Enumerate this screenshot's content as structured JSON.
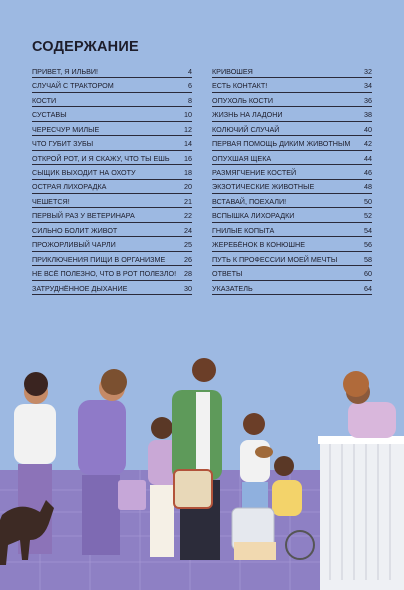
{
  "header": {
    "title": "СОДЕРЖАНИЕ"
  },
  "toc": {
    "left": [
      {
        "title": "ПРИВЕТ, Я ИЛЬВИ!",
        "page": "4"
      },
      {
        "title": "СЛУЧАЙ С ТРАКТОРОМ",
        "page": "6"
      },
      {
        "title": "КОСТИ",
        "page": "8"
      },
      {
        "title": "СУСТАВЫ",
        "page": "10"
      },
      {
        "title": "ЧЕРЕСЧУР МИЛЫЕ",
        "page": "12"
      },
      {
        "title": "ЧТО ГУБИТ ЗУБЫ",
        "page": "14"
      },
      {
        "title": "ОТКРОЙ РОТ, И Я СКАЖУ, ЧТО ТЫ ЕШЬ",
        "page": "16"
      },
      {
        "title": "СЫЩИК ВЫХОДИТ НА ОХОТУ",
        "page": "18"
      },
      {
        "title": "ОСТРАЯ ЛИХОРАДКА",
        "page": "20"
      },
      {
        "title": "ЧЕШЕТСЯ!",
        "page": "21"
      },
      {
        "title": "ПЕРВЫЙ РАЗ У ВЕТЕРИНАРА",
        "page": "22"
      },
      {
        "title": "СИЛЬНО БОЛИТ ЖИВОТ",
        "page": "24"
      },
      {
        "title": "ПРОЖОРЛИВЫЙ ЧАРЛИ",
        "page": "25"
      },
      {
        "title": "ПРИКЛЮЧЕНИЯ ПИЩИ В ОРГАНИЗМЕ",
        "page": "26"
      },
      {
        "title": "НЕ ВСЁ ПОЛЕЗНО, ЧТО В РОТ ПОЛЕЗЛО!",
        "page": "28"
      },
      {
        "title": "ЗАТРУДНЁННОЕ ДЫХАНИЕ",
        "page": "30"
      }
    ],
    "right": [
      {
        "title": "КРИВОШЕЯ",
        "page": "32"
      },
      {
        "title": "ЕСТЬ КОНТАКТ!",
        "page": "34"
      },
      {
        "title": "ОПУХОЛЬ КОСТИ",
        "page": "36"
      },
      {
        "title": "ЖИЗНЬ НА ЛАДОНИ",
        "page": "38"
      },
      {
        "title": "КОЛЮЧИЙ СЛУЧАЙ",
        "page": "40"
      },
      {
        "title": "ПЕРВАЯ ПОМОЩЬ ДИКИМ ЖИВОТНЫМ",
        "page": "42"
      },
      {
        "title": "ОПУХШАЯ ЩЕКА",
        "page": "44"
      },
      {
        "title": "РАЗМЯГЧЕНИЕ КОСТЕЙ",
        "page": "46"
      },
      {
        "title": "ЭКЗОТИЧЕСКИЕ ЖИВОТНЫЕ",
        "page": "48"
      },
      {
        "title": "ВСТАВАЙ, ПОЕХАЛИ!",
        "page": "50"
      },
      {
        "title": "ВСПЫШКА ЛИХОРАДКИ",
        "page": "52"
      },
      {
        "title": "ГНИЛЫЕ КОПЫТА",
        "page": "54"
      },
      {
        "title": "ЖЕРЕБЁНОК В КОНЮШНЕ",
        "page": "56"
      },
      {
        "title": "ПУТЬ К ПРОФЕССИИ МОЕЙ МЕЧТЫ",
        "page": "58"
      },
      {
        "title": "ОТВЕТЫ",
        "page": "60"
      },
      {
        "title": "УКАЗАТЕЛЬ",
        "page": "64"
      }
    ]
  }
}
